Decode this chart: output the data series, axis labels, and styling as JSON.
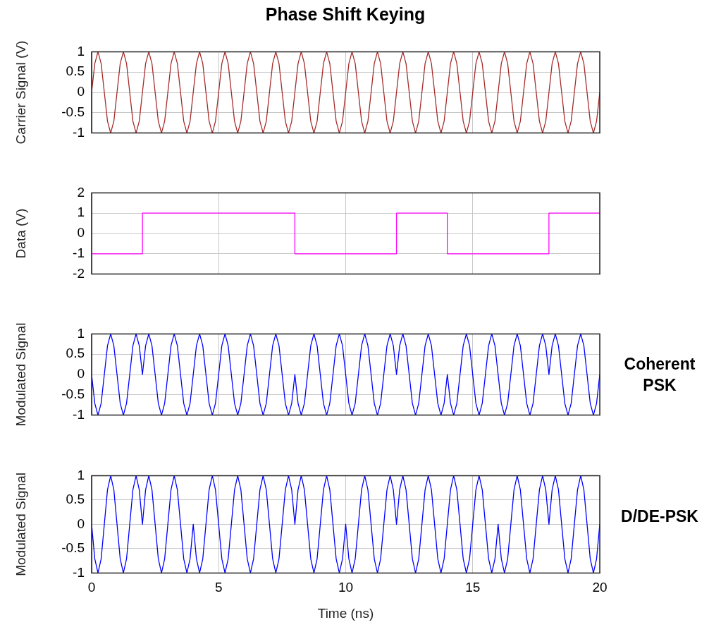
{
  "chart_data": [
    {
      "type": "line",
      "title": "Phase Shift Keying",
      "ylabel": "Carrier Signal (V)",
      "xlim": [
        0,
        20
      ],
      "xticks": [
        0,
        5,
        10,
        15,
        20
      ],
      "ylim": [
        -1,
        1
      ],
      "yticks": [
        -1,
        -0.5,
        0,
        0.5,
        1
      ],
      "grid": true,
      "legend": false,
      "marker": "none",
      "tick_labels": "y",
      "x": [
        0,
        0.125,
        0.25,
        0.375,
        0.5,
        0.625,
        0.75,
        0.875,
        1,
        1.125,
        1.25,
        1.375,
        1.5,
        1.625,
        1.75,
        1.875,
        2,
        2.125,
        2.25,
        2.375,
        2.5,
        2.625,
        2.75,
        2.875,
        3,
        3.125,
        3.25,
        3.375,
        3.5,
        3.625,
        3.75,
        3.875,
        4,
        4.125,
        4.25,
        4.375,
        4.5,
        4.625,
        4.75,
        4.875,
        5,
        5.125,
        5.25,
        5.375,
        5.5,
        5.625,
        5.75,
        5.875,
        6,
        6.125,
        6.25,
        6.375,
        6.5,
        6.625,
        6.75,
        6.875,
        7,
        7.125,
        7.25,
        7.375,
        7.5,
        7.625,
        7.75,
        7.875,
        8,
        8.125,
        8.25,
        8.375,
        8.5,
        8.625,
        8.75,
        8.875,
        9,
        9.125,
        9.25,
        9.375,
        9.5,
        9.625,
        9.75,
        9.875,
        10,
        10.125,
        10.25,
        10.375,
        10.5,
        10.625,
        10.75,
        10.875,
        11,
        11.125,
        11.25,
        11.375,
        11.5,
        11.625,
        11.75,
        11.875,
        12,
        12.125,
        12.25,
        12.375,
        12.5,
        12.625,
        12.75,
        12.875,
        13,
        13.125,
        13.25,
        13.375,
        13.5,
        13.625,
        13.75,
        13.875,
        14,
        14.125,
        14.25,
        14.375,
        14.5,
        14.625,
        14.75,
        14.875,
        15,
        15.125,
        15.25,
        15.375,
        15.5,
        15.625,
        15.75,
        15.875,
        16,
        16.125,
        16.25,
        16.375,
        16.5,
        16.625,
        16.75,
        16.875,
        17,
        17.125,
        17.25,
        17.375,
        17.5,
        17.625,
        17.75,
        17.875,
        18,
        18.125,
        18.25,
        18.375,
        18.5,
        18.625,
        18.75,
        18.875,
        19,
        19.125,
        19.25,
        19.375,
        19.5,
        19.625,
        19.75,
        19.875,
        20
      ],
      "series": [
        {
          "color": "#a52a2a",
          "values": [
            0,
            0.71,
            1,
            0.71,
            0,
            -0.71,
            -1,
            -0.71,
            0,
            0.71,
            1,
            0.71,
            0,
            -0.71,
            -1,
            -0.71,
            0,
            0.71,
            1,
            0.71,
            0,
            -0.71,
            -1,
            -0.71,
            0,
            0.71,
            1,
            0.71,
            0,
            -0.71,
            -1,
            -0.71,
            0,
            0.71,
            1,
            0.71,
            0,
            -0.71,
            -1,
            -0.71,
            0,
            0.71,
            1,
            0.71,
            0,
            -0.71,
            -1,
            -0.71,
            0,
            0.71,
            1,
            0.71,
            0,
            -0.71,
            -1,
            -0.71,
            0,
            0.71,
            1,
            0.71,
            0,
            -0.71,
            -1,
            -0.71,
            0,
            0.71,
            1,
            0.71,
            0,
            -0.71,
            -1,
            -0.71,
            0,
            0.71,
            1,
            0.71,
            0,
            -0.71,
            -1,
            -0.71,
            0,
            0.71,
            1,
            0.71,
            0,
            -0.71,
            -1,
            -0.71,
            0,
            0.71,
            1,
            0.71,
            0,
            -0.71,
            -1,
            -0.71,
            0,
            0.71,
            1,
            0.71,
            0,
            -0.71,
            -1,
            -0.71,
            0,
            0.71,
            1,
            0.71,
            0,
            -0.71,
            -1,
            -0.71,
            0,
            0.71,
            1,
            0.71,
            0,
            -0.71,
            -1,
            -0.71,
            0,
            0.71,
            1,
            0.71,
            0,
            -0.71,
            -1,
            -0.71,
            0,
            0.71,
            1,
            0.71,
            0,
            -0.71,
            -1,
            -0.71,
            0,
            0.71,
            1,
            0.71,
            0,
            -0.71,
            -1,
            -0.71,
            0,
            0.71,
            1,
            0.71,
            0,
            -0.71,
            -1,
            -0.71,
            0,
            0.71,
            1,
            0.71,
            0,
            -0.71,
            -1,
            -0.71,
            0
          ]
        }
      ]
    },
    {
      "type": "step",
      "ylabel": "Data (V)",
      "xlim": [
        0,
        20
      ],
      "xticks": [
        0,
        5,
        10,
        15,
        20
      ],
      "ylim": [
        -2,
        2
      ],
      "yticks": [
        -2,
        -1,
        0,
        1,
        2
      ],
      "grid": true,
      "legend": false,
      "marker": "none",
      "tick_labels": "y",
      "x": [
        0,
        2,
        8,
        12,
        14,
        18,
        20
      ],
      "series": [
        {
          "color": "#ff00ff",
          "values": [
            -1,
            1,
            -1,
            1,
            -1,
            1,
            1
          ]
        }
      ]
    },
    {
      "type": "line",
      "ylabel": "Modulated Signal",
      "annotations": [
        "Coherent PSK"
      ],
      "xlim": [
        0,
        20
      ],
      "xticks": [
        0,
        5,
        10,
        15,
        20
      ],
      "ylim": [
        -1,
        1
      ],
      "yticks": [
        -1,
        -0.5,
        0,
        0.5,
        1
      ],
      "grid": true,
      "legend": false,
      "marker": "none",
      "tick_labels": "y",
      "x": [
        0,
        0.125,
        0.25,
        0.375,
        0.5,
        0.625,
        0.75,
        0.875,
        1,
        1.125,
        1.25,
        1.375,
        1.5,
        1.625,
        1.75,
        1.875,
        2,
        2.125,
        2.25,
        2.375,
        2.5,
        2.625,
        2.75,
        2.875,
        3,
        3.125,
        3.25,
        3.375,
        3.5,
        3.625,
        3.75,
        3.875,
        4,
        4.125,
        4.25,
        4.375,
        4.5,
        4.625,
        4.75,
        4.875,
        5,
        5.125,
        5.25,
        5.375,
        5.5,
        5.625,
        5.75,
        5.875,
        6,
        6.125,
        6.25,
        6.375,
        6.5,
        6.625,
        6.75,
        6.875,
        7,
        7.125,
        7.25,
        7.375,
        7.5,
        7.625,
        7.75,
        7.875,
        8,
        8.125,
        8.25,
        8.375,
        8.5,
        8.625,
        8.75,
        8.875,
        9,
        9.125,
        9.25,
        9.375,
        9.5,
        9.625,
        9.75,
        9.875,
        10,
        10.125,
        10.25,
        10.375,
        10.5,
        10.625,
        10.75,
        10.875,
        11,
        11.125,
        11.25,
        11.375,
        11.5,
        11.625,
        11.75,
        11.875,
        12,
        12.125,
        12.25,
        12.375,
        12.5,
        12.625,
        12.75,
        12.875,
        13,
        13.125,
        13.25,
        13.375,
        13.5,
        13.625,
        13.75,
        13.875,
        14,
        14.125,
        14.25,
        14.375,
        14.5,
        14.625,
        14.75,
        14.875,
        15,
        15.125,
        15.25,
        15.375,
        15.5,
        15.625,
        15.75,
        15.875,
        16,
        16.125,
        16.25,
        16.375,
        16.5,
        16.625,
        16.75,
        16.875,
        17,
        17.125,
        17.25,
        17.375,
        17.5,
        17.625,
        17.75,
        17.875,
        18,
        18.125,
        18.25,
        18.375,
        18.5,
        18.625,
        18.75,
        18.875,
        19,
        19.125,
        19.25,
        19.375,
        19.5,
        19.625,
        19.75,
        19.875,
        20
      ],
      "series": [
        {
          "color": "#0000ff",
          "values": [
            0,
            -0.71,
            -1,
            -0.71,
            0,
            0.71,
            1,
            0.71,
            0,
            -0.71,
            -1,
            -0.71,
            0,
            0.71,
            1,
            0.71,
            0,
            0.71,
            1,
            0.71,
            0,
            -0.71,
            -1,
            -0.71,
            0,
            0.71,
            1,
            0.71,
            0,
            -0.71,
            -1,
            -0.71,
            0,
            0.71,
            1,
            0.71,
            0,
            -0.71,
            -1,
            -0.71,
            0,
            0.71,
            1,
            0.71,
            0,
            -0.71,
            -1,
            -0.71,
            0,
            0.71,
            1,
            0.71,
            0,
            -0.71,
            -1,
            -0.71,
            0,
            0.71,
            1,
            0.71,
            0,
            -0.71,
            -1,
            -0.71,
            0,
            -0.71,
            -1,
            -0.71,
            0,
            0.71,
            1,
            0.71,
            0,
            -0.71,
            -1,
            -0.71,
            0,
            0.71,
            1,
            0.71,
            0,
            -0.71,
            -1,
            -0.71,
            0,
            0.71,
            1,
            0.71,
            0,
            -0.71,
            -1,
            -0.71,
            0,
            0.71,
            1,
            0.71,
            0,
            0.71,
            1,
            0.71,
            0,
            -0.71,
            -1,
            -0.71,
            0,
            0.71,
            1,
            0.71,
            0,
            -0.71,
            -1,
            -0.71,
            0,
            -0.71,
            -1,
            -0.71,
            0,
            0.71,
            1,
            0.71,
            0,
            -0.71,
            -1,
            -0.71,
            0,
            0.71,
            1,
            0.71,
            0,
            -0.71,
            -1,
            -0.71,
            0,
            0.71,
            1,
            0.71,
            0,
            -0.71,
            -1,
            -0.71,
            0,
            0.71,
            1,
            0.71,
            0,
            0.71,
            1,
            0.71,
            0,
            -0.71,
            -1,
            -0.71,
            0,
            0.71,
            1,
            0.71,
            0,
            -0.71,
            -1,
            -0.71,
            0
          ]
        }
      ]
    },
    {
      "type": "line",
      "ylabel": "Modulated Signal",
      "xlabel": "Time (ns)",
      "annotations": [
        "D/DE-PSK"
      ],
      "xlim": [
        0,
        20
      ],
      "xticks": [
        0,
        5,
        10,
        15,
        20
      ],
      "ylim": [
        -1,
        1
      ],
      "yticks": [
        -1,
        -0.5,
        0,
        0.5,
        1
      ],
      "grid": true,
      "legend": false,
      "marker": "none",
      "x": [
        0,
        0.125,
        0.25,
        0.375,
        0.5,
        0.625,
        0.75,
        0.875,
        1,
        1.125,
        1.25,
        1.375,
        1.5,
        1.625,
        1.75,
        1.875,
        2,
        2.125,
        2.25,
        2.375,
        2.5,
        2.625,
        2.75,
        2.875,
        3,
        3.125,
        3.25,
        3.375,
        3.5,
        3.625,
        3.75,
        3.875,
        4,
        4.125,
        4.25,
        4.375,
        4.5,
        4.625,
        4.75,
        4.875,
        5,
        5.125,
        5.25,
        5.375,
        5.5,
        5.625,
        5.75,
        5.875,
        6,
        6.125,
        6.25,
        6.375,
        6.5,
        6.625,
        6.75,
        6.875,
        7,
        7.125,
        7.25,
        7.375,
        7.5,
        7.625,
        7.75,
        7.875,
        8,
        8.125,
        8.25,
        8.375,
        8.5,
        8.625,
        8.75,
        8.875,
        9,
        9.125,
        9.25,
        9.375,
        9.5,
        9.625,
        9.75,
        9.875,
        10,
        10.125,
        10.25,
        10.375,
        10.5,
        10.625,
        10.75,
        10.875,
        11,
        11.125,
        11.25,
        11.375,
        11.5,
        11.625,
        11.75,
        11.875,
        12,
        12.125,
        12.25,
        12.375,
        12.5,
        12.625,
        12.75,
        12.875,
        13,
        13.125,
        13.25,
        13.375,
        13.5,
        13.625,
        13.75,
        13.875,
        14,
        14.125,
        14.25,
        14.375,
        14.5,
        14.625,
        14.75,
        14.875,
        15,
        15.125,
        15.25,
        15.375,
        15.5,
        15.625,
        15.75,
        15.875,
        16,
        16.125,
        16.25,
        16.375,
        16.5,
        16.625,
        16.75,
        16.875,
        17,
        17.125,
        17.25,
        17.375,
        17.5,
        17.625,
        17.75,
        17.875,
        18,
        18.125,
        18.25,
        18.375,
        18.5,
        18.625,
        18.75,
        18.875,
        19,
        19.125,
        19.25,
        19.375,
        19.5,
        19.625,
        19.75,
        19.875,
        20
      ],
      "series": [
        {
          "color": "#0000ff",
          "values": [
            0,
            -0.71,
            -1,
            -0.71,
            0,
            0.71,
            1,
            0.71,
            0,
            -0.71,
            -1,
            -0.71,
            0,
            0.71,
            1,
            0.71,
            0,
            0.71,
            1,
            0.71,
            0,
            -0.71,
            -1,
            -0.71,
            0,
            0.71,
            1,
            0.71,
            0,
            -0.71,
            -1,
            -0.71,
            0,
            -0.71,
            -1,
            -0.71,
            0,
            0.71,
            1,
            0.71,
            0,
            -0.71,
            -1,
            -0.71,
            0,
            0.71,
            1,
            0.71,
            0,
            -0.71,
            -1,
            -0.71,
            0,
            0.71,
            1,
            0.71,
            0,
            -0.71,
            -1,
            -0.71,
            0,
            0.71,
            1,
            0.71,
            0,
            0.71,
            1,
            0.71,
            0,
            -0.71,
            -1,
            -0.71,
            0,
            0.71,
            1,
            0.71,
            0,
            -0.71,
            -1,
            -0.71,
            0,
            -0.71,
            -1,
            -0.71,
            0,
            0.71,
            1,
            0.71,
            0,
            -0.71,
            -1,
            -0.71,
            0,
            0.71,
            1,
            0.71,
            0,
            0.71,
            1,
            0.71,
            0,
            -0.71,
            -1,
            -0.71,
            0,
            0.71,
            1,
            0.71,
            0,
            -0.71,
            -1,
            -0.71,
            0,
            0.71,
            1,
            0.71,
            0,
            -0.71,
            -1,
            -0.71,
            0,
            0.71,
            1,
            0.71,
            0,
            -0.71,
            -1,
            -0.71,
            0,
            -0.71,
            -1,
            -0.71,
            0,
            0.71,
            1,
            0.71,
            0,
            -0.71,
            -1,
            -0.71,
            0,
            0.71,
            1,
            0.71,
            0,
            0.71,
            1,
            0.71,
            0,
            -0.71,
            -1,
            -0.71,
            0,
            0.71,
            1,
            0.71,
            0,
            -0.71,
            -1,
            -0.71,
            0
          ]
        }
      ]
    }
  ]
}
